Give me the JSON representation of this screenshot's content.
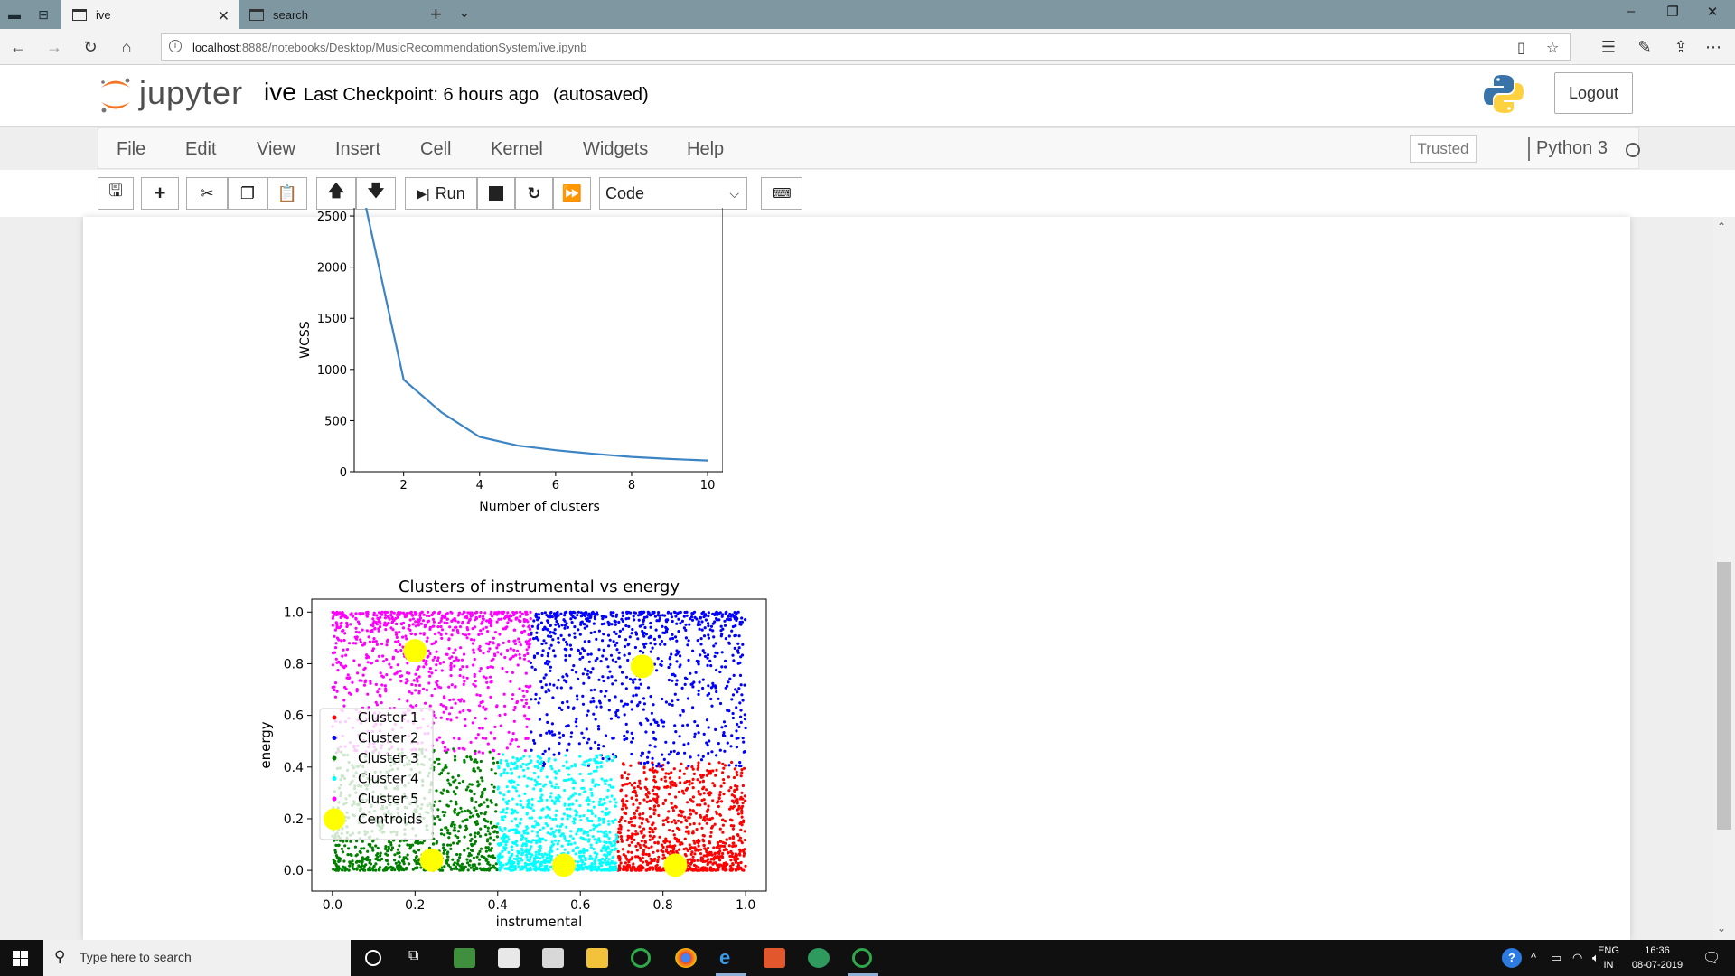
{
  "browser": {
    "tabs": [
      {
        "title": "ive",
        "active": true
      },
      {
        "title": "search",
        "active": false
      }
    ],
    "url_host": "localhost",
    "url_path": ":8888/notebooks/Desktop/MusicRecommendationSystem/ive.ipynb"
  },
  "header": {
    "logo_text": "jupyter",
    "notebook_name": "ive",
    "checkpoint": "Last Checkpoint: 6 hours ago",
    "autosave": "(autosaved)",
    "logout_label": "Logout"
  },
  "menubar": {
    "items": [
      "File",
      "Edit",
      "View",
      "Insert",
      "Cell",
      "Kernel",
      "Widgets",
      "Help"
    ],
    "trusted_label": "Trusted",
    "kernel_name": "Python 3"
  },
  "toolbar": {
    "run_label": "Run",
    "cell_type": "Code"
  },
  "chart_data": [
    {
      "type": "line",
      "title": "",
      "xlabel": "Number of clusters",
      "ylabel": "WCSS",
      "x": [
        1,
        2,
        3,
        4,
        5,
        6,
        7,
        8,
        9,
        10
      ],
      "y": [
        2600,
        900,
        580,
        340,
        255,
        210,
        175,
        145,
        125,
        110
      ],
      "xlim": [
        0.7,
        10.45
      ],
      "ylim": [
        0,
        2580
      ],
      "x_ticks": [
        "2",
        "4",
        "6",
        "8",
        "10"
      ],
      "y_ticks": [
        "0",
        "500",
        "1000",
        "1500",
        "2000",
        "2500"
      ],
      "color": "#3c84c4"
    },
    {
      "type": "scatter",
      "title": "Clusters of instrumental vs energy",
      "xlabel": "instrumental",
      "ylabel": "energy",
      "xlim": [
        -0.05,
        1.05
      ],
      "ylim": [
        -0.08,
        1.05
      ],
      "x_ticks": [
        "0.0",
        "0.2",
        "0.4",
        "0.6",
        "0.8",
        "1.0"
      ],
      "y_ticks": [
        "0.0",
        "0.2",
        "0.4",
        "0.6",
        "0.8",
        "1.0"
      ],
      "legend": [
        "Cluster 1",
        "Cluster 2",
        "Cluster 3",
        "Cluster 4",
        "Cluster 5",
        "Centroids"
      ],
      "series": [
        {
          "name": "Cluster 1",
          "color": "#ff0000",
          "region": {
            "x": [
              0.69,
              1.0
            ],
            "y": [
              0.0,
              0.42
            ]
          }
        },
        {
          "name": "Cluster 2",
          "color": "#0000ff",
          "region": {
            "x": [
              0.48,
              1.0
            ],
            "y": [
              0.4,
              1.0
            ]
          }
        },
        {
          "name": "Cluster 3",
          "color": "#008000",
          "region": {
            "x": [
              0.0,
              0.4
            ],
            "y": [
              0.0,
              0.47
            ]
          }
        },
        {
          "name": "Cluster 4",
          "color": "#00ffff",
          "region": {
            "x": [
              0.4,
              0.69
            ],
            "y": [
              0.0,
              0.45
            ]
          }
        },
        {
          "name": "Cluster 5",
          "color": "#ff00ff",
          "region": {
            "x": [
              0.0,
              0.48
            ],
            "y": [
              0.45,
              1.0
            ]
          }
        }
      ],
      "centroids": {
        "name": "Centroids",
        "color": "#ffff00",
        "points": [
          [
            0.2,
            0.85
          ],
          [
            0.75,
            0.79
          ],
          [
            0.24,
            0.04
          ],
          [
            0.56,
            0.02
          ],
          [
            0.83,
            0.02
          ]
        ]
      }
    }
  ],
  "taskbar": {
    "search_placeholder": "Type here to search",
    "lang_top": "ENG",
    "lang_bottom": "IN",
    "time": "16:36",
    "date": "08-07-2019"
  }
}
